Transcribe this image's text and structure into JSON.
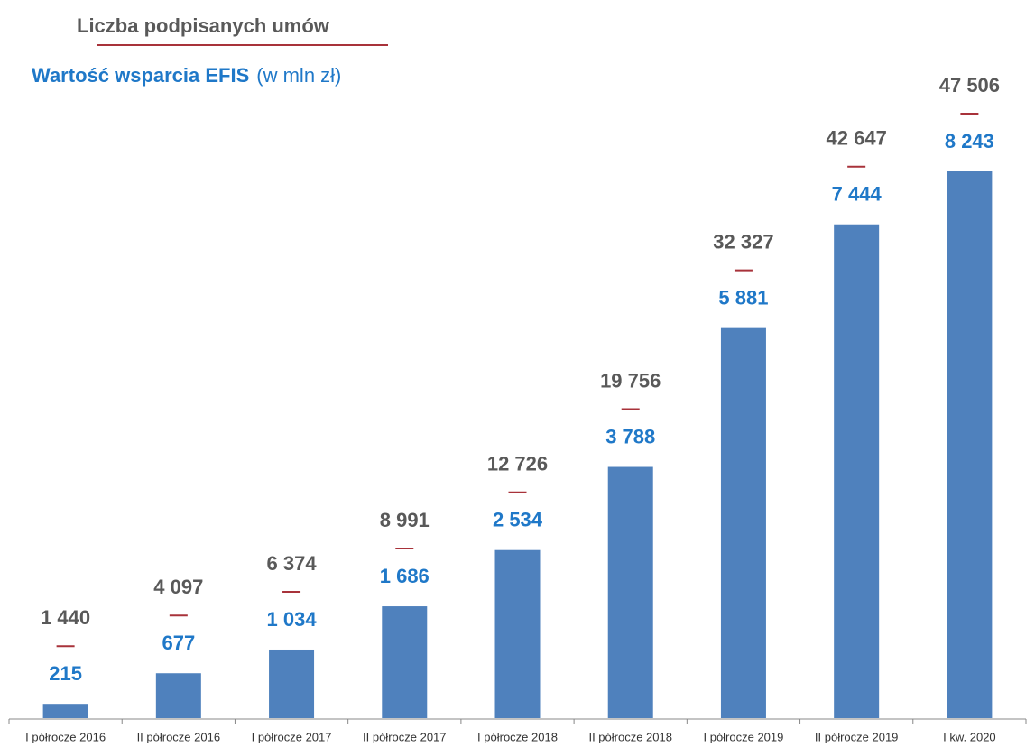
{
  "chart_data": {
    "type": "bar",
    "categories": [
      "I półrocze 2016",
      "II półrocze 2016",
      "I półrocze 2017",
      "II półrocze 2017",
      "I półrocze 2018",
      "II półrocze 2018",
      "I półrocze 2019",
      "II półrocze 2019",
      "I kw. 2020"
    ],
    "series": [
      {
        "name": "Wartość wsparcia EFIS",
        "unit": "(w mln zł)",
        "color": "#4f81bd",
        "label_color": "#1f78c8",
        "values": [
          215,
          677,
          1034,
          1686,
          2534,
          3788,
          5881,
          7444,
          8243
        ],
        "value_labels": [
          "215",
          "677",
          "1 034",
          "1 686",
          "2 534",
          "3 788",
          "5 881",
          "7 444",
          "8 243"
        ]
      },
      {
        "name": "Liczba podpisanych umów",
        "color": "#595959",
        "separator_color": "#a8323a",
        "values": [
          1440,
          4097,
          6374,
          8991,
          12726,
          19756,
          32327,
          42647,
          47506
        ],
        "value_labels": [
          "1 440",
          "4 097",
          "6 374",
          "8 991",
          "12 726",
          "19 756",
          "32 327",
          "42 647",
          "47 506"
        ]
      }
    ]
  }
}
